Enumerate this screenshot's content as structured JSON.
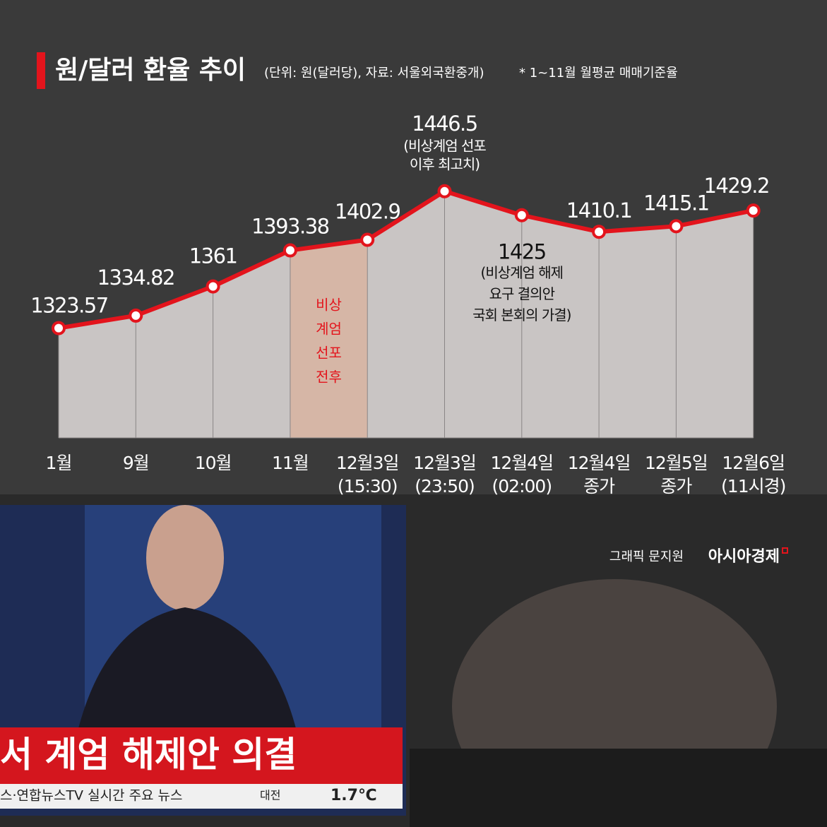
{
  "header": {
    "title": "원/달러 환율 추이",
    "unit_note": "(단위: 원(달러당), 자료: 서울외국환중개)",
    "footnote": "* 1~11월 월평균 매매기준율"
  },
  "chart_data": {
    "type": "line",
    "categories": [
      [
        "1월"
      ],
      [
        "9월"
      ],
      [
        "10월"
      ],
      [
        "11월"
      ],
      [
        "12월3일",
        "(15:30)"
      ],
      [
        "12월3일",
        "(23:50)"
      ],
      [
        "12월4일",
        "(02:00)"
      ],
      [
        "12월4일",
        "종가"
      ],
      [
        "12월5일",
        "종가"
      ],
      [
        "12월6일",
        "(11시경)"
      ]
    ],
    "values": [
      1323.57,
      1334.82,
      1361,
      1393.38,
      1402.9,
      1446.5,
      1425,
      1410.1,
      1415.1,
      1429.2
    ],
    "color": "#e3141c",
    "area_color": "#c9c5c4",
    "ylim": [
      1225,
      1480
    ],
    "highlight": {
      "from": 3,
      "to": 4,
      "color": "#d6b6a6",
      "label": [
        "비상",
        "계엄",
        "선포",
        "전후"
      ]
    },
    "annotations": [
      {
        "index": 5,
        "lines": [
          "(비상계엄 선포",
          "이후 최고치)"
        ]
      },
      {
        "index": 6,
        "lines": [
          "(비상계엄 해제",
          "요구 결의안",
          "국회 본회의 가결)"
        ]
      }
    ]
  },
  "credit": {
    "label": "그래픽 문지원",
    "brand": "아시아경제"
  },
  "photo": {
    "headline": "서 계엄 해제안 의결",
    "ticker": "스·연합뉴스TV 실시간 주요 뉴스",
    "city": "대전",
    "temperature": "1.7℃"
  }
}
